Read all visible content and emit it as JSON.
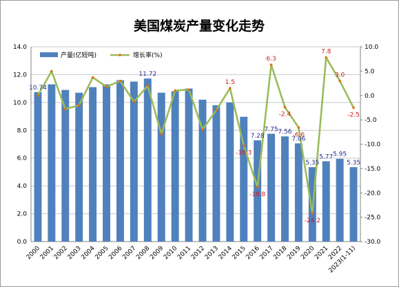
{
  "chart_data": {
    "type": "bar+line",
    "title": "美国煤炭产量变化走势",
    "categories": [
      "2000",
      "2001",
      "2002",
      "2003",
      "2004",
      "2005",
      "2006",
      "2007",
      "2008",
      "2009",
      "2010",
      "2011",
      "2012",
      "2013",
      "2014",
      "2015",
      "2016",
      "2017",
      "2018",
      "2019",
      "2020",
      "2021",
      "2022",
      "2023(1-11)"
    ],
    "series": [
      {
        "name": "产量(亿短吨)",
        "type": "bar",
        "axis": "left",
        "color": "#4f81bd",
        "values": [
          10.74,
          11.3,
          10.9,
          10.7,
          11.1,
          11.3,
          11.6,
          11.5,
          11.72,
          10.7,
          10.8,
          11.0,
          10.2,
          9.8,
          10.0,
          8.97,
          7.28,
          7.75,
          7.56,
          7.06,
          5.35,
          5.77,
          5.95,
          5.35
        ],
        "labels": {
          "0": "10.74",
          "8": "11.72",
          "16": "7.28",
          "17": "7.75",
          "18": "7.56",
          "19": "7.06",
          "20": "5.35",
          "21": "5.77",
          "22": "5.95",
          "23": "5.35"
        }
      },
      {
        "name": "增长率(%)",
        "type": "line",
        "axis": "right",
        "color": "#9bbb59",
        "marker_color": "#e46c0a",
        "values": [
          0.0,
          5.0,
          -2.8,
          -2.0,
          3.7,
          1.8,
          3.0,
          -1.3,
          2.0,
          -7.9,
          1.0,
          1.2,
          -7.0,
          -3.0,
          1.5,
          -10.3,
          -18.8,
          6.3,
          -2.4,
          -6.6,
          -24.2,
          7.8,
          3.0,
          -2.5
        ],
        "labels": {
          "14": "1.5",
          "15": "-10.3",
          "16": "-18.8",
          "17": "6.3",
          "18": "-2.4",
          "19": "-6.6",
          "20": "-24.2",
          "21": "7.8",
          "22": "3.0",
          "23": "-2.5"
        }
      }
    ],
    "y_left": {
      "min": 0,
      "max": 14,
      "step": 2,
      "ticks": [
        "0.0",
        "2.0",
        "4.0",
        "6.0",
        "8.0",
        "10.0",
        "12.0",
        "14.0"
      ]
    },
    "y_right": {
      "min": -30,
      "max": 10,
      "step": 5,
      "ticks": [
        "-30.0",
        "-25.0",
        "-20.0",
        "-15.0",
        "-10.0",
        "-5.0",
        "0.0",
        "5.0",
        "10.0"
      ]
    },
    "grid": "horizontal",
    "legend": "top-left"
  }
}
